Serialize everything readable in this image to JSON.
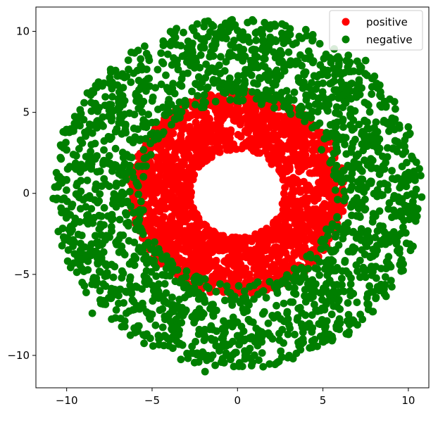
{
  "chart_data": {
    "type": "scatter",
    "title": "",
    "xlabel": "",
    "ylabel": "",
    "xlim": [
      -11.8,
      11.2
    ],
    "ylim": [
      -12.0,
      11.5
    ],
    "x_ticks": [
      -10,
      -5,
      0,
      5,
      10
    ],
    "y_ticks": [
      -10,
      -5,
      0,
      5,
      10
    ],
    "grid": false,
    "legend_position": "top-right",
    "series": [
      {
        "name": "positive",
        "color": "#ff0000",
        "ring": {
          "center": [
            0,
            0
          ],
          "inner_radius": 2.7,
          "outer_radius": 6.3,
          "point_count": 2000
        },
        "sample_points": [
          [
            -3.0,
            0.0
          ],
          [
            3.2,
            0.5
          ],
          [
            0.2,
            3.5
          ],
          [
            -0.5,
            -3.3
          ],
          [
            2.0,
            1.8
          ],
          [
            -2.2,
            -2.0
          ],
          [
            5.0,
            2.0
          ],
          [
            -5.2,
            -1.0
          ],
          [
            2.1,
            -1.9
          ],
          [
            -1.8,
            2.4
          ],
          [
            0.0,
            -5.8
          ],
          [
            4.6,
            -3.8
          ],
          [
            -4.0,
            4.5
          ],
          [
            1.3,
            5.8
          ],
          [
            -3.5,
            1.3
          ],
          [
            3.6,
            -1.2
          ]
        ]
      },
      {
        "name": "negative",
        "color": "#007f00",
        "ring": {
          "center": [
            0,
            0
          ],
          "inner_radius": 5.6,
          "outer_radius": 10.8,
          "point_count": 2000
        },
        "sample_points": [
          [
            -10.5,
            0.4
          ],
          [
            9.9,
            1.9
          ],
          [
            -1.9,
            -11.0
          ],
          [
            -0.7,
            10.5
          ],
          [
            -8.5,
            -7.4
          ],
          [
            7.5,
            8.2
          ],
          [
            -7.5,
            6.8
          ],
          [
            6.5,
            -8.7
          ],
          [
            -4.6,
            -9.0
          ],
          [
            4.0,
            10.1
          ],
          [
            9.5,
            -4.4
          ],
          [
            -9.9,
            -3.5
          ],
          [
            10.0,
            4.1
          ],
          [
            1.5,
            -10.7
          ],
          [
            -10.2,
            3.8
          ],
          [
            8.6,
            -6.2
          ]
        ]
      }
    ]
  }
}
